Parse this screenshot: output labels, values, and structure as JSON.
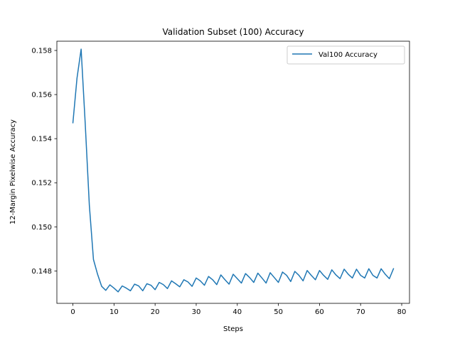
{
  "chart_data": {
    "type": "line",
    "title": "Validation Subset (100) Accuracy",
    "xlabel": "Steps",
    "ylabel": "12-Margin Pixelwise Accuracy",
    "xlim": [
      -3.9,
      81.9
    ],
    "ylim": [
      0.14653,
      0.15842
    ],
    "xticks": [
      0,
      10,
      20,
      30,
      40,
      50,
      60,
      70,
      80
    ],
    "yticks": [
      0.148,
      0.15,
      0.152,
      0.154,
      0.156,
      0.158
    ],
    "ytick_labels": [
      "0.148",
      "0.150",
      "0.152",
      "0.154",
      "0.156",
      "0.158"
    ],
    "grid": false,
    "legend_position": "top-right",
    "series": [
      {
        "name": "Val100 Accuracy",
        "color": "#1f77b4",
        "x": [
          0,
          1,
          2,
          3,
          4,
          5,
          6,
          7,
          8,
          9,
          10,
          11,
          12,
          13,
          14,
          15,
          16,
          17,
          18,
          19,
          20,
          21,
          22,
          23,
          24,
          25,
          26,
          27,
          28,
          29,
          30,
          31,
          32,
          33,
          34,
          35,
          36,
          37,
          38,
          39,
          40,
          41,
          42,
          43,
          44,
          45,
          46,
          47,
          48,
          49,
          50,
          51,
          52,
          53,
          54,
          55,
          56,
          57,
          58,
          59,
          60,
          61,
          62,
          63,
          64,
          65,
          66,
          67,
          68,
          69,
          70,
          71,
          72,
          73,
          74,
          75,
          76,
          77,
          78
        ],
        "y": [
          0.15472,
          0.15675,
          0.15806,
          0.15467,
          0.15098,
          0.14852,
          0.14785,
          0.1473,
          0.14712,
          0.14737,
          0.14722,
          0.14705,
          0.14732,
          0.14722,
          0.1471,
          0.1474,
          0.14732,
          0.1471,
          0.14742,
          0.14735,
          0.14715,
          0.14748,
          0.14738,
          0.1472,
          0.14755,
          0.14742,
          0.14728,
          0.1476,
          0.1475,
          0.1473,
          0.14768,
          0.14755,
          0.14735,
          0.14775,
          0.1476,
          0.14738,
          0.14782,
          0.1476,
          0.1474,
          0.14785,
          0.14765,
          0.14745,
          0.14788,
          0.1477,
          0.14748,
          0.1479,
          0.14768,
          0.14745,
          0.14792,
          0.1477,
          0.14748,
          0.14795,
          0.1478,
          0.14752,
          0.14798,
          0.1478,
          0.14755,
          0.14802,
          0.1478,
          0.1476,
          0.14802,
          0.1478,
          0.14762,
          0.14805,
          0.14782,
          0.14765,
          0.14808,
          0.14785,
          0.14768,
          0.14808,
          0.1478,
          0.14768,
          0.1481,
          0.1478,
          0.14768,
          0.1481,
          0.14785,
          0.14765,
          0.1481
        ]
      }
    ]
  }
}
